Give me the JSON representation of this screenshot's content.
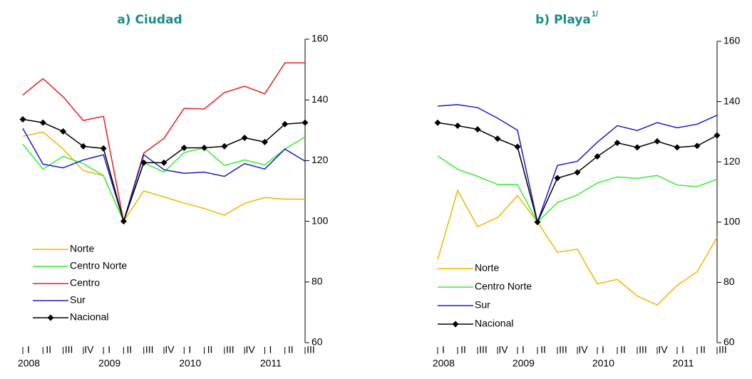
{
  "chart_data": [
    {
      "type": "line",
      "title": "a) Ciudad",
      "categories": [
        "I",
        "II",
        "III",
        "IV",
        "I",
        "II",
        "III",
        "IV",
        "I",
        "II",
        "III",
        "IV",
        "I",
        "II",
        "III"
      ],
      "year_labels": [
        "2008",
        "2009",
        "2010",
        "2011"
      ],
      "ylim": [
        60,
        160
      ],
      "yticks": [
        60,
        80,
        100,
        120,
        140,
        160
      ],
      "grid": false,
      "series": [
        {
          "name": "Norte",
          "color": "#f5b400",
          "values": [
            128,
            129.4,
            123.8,
            116.7,
            115,
            100,
            110,
            108,
            106,
            104.2,
            102,
            105.9,
            107.8,
            107.3,
            107.3
          ]
        },
        {
          "name": "Centro Norte",
          "color": "#33ee33",
          "values": [
            125.4,
            117.2,
            121.4,
            119,
            115,
            100,
            119.3,
            116.2,
            122.6,
            124.2,
            118.4,
            120.2,
            118.6,
            123.8,
            127.8
          ]
        },
        {
          "name": "Centro",
          "color": "#e8201a",
          "values": [
            141.6,
            147,
            141,
            133.2,
            134.6,
            100,
            122.5,
            127.3,
            137.2,
            137,
            142.4,
            144.5,
            142,
            152.2,
            152.2
          ]
        },
        {
          "name": "Sur",
          "color": "#1a1acc",
          "values": [
            130.6,
            118.8,
            117.6,
            120.2,
            121.9,
            100,
            121.9,
            117,
            115.8,
            116.2,
            114.8,
            119,
            117.2,
            123.8,
            119.8
          ]
        },
        {
          "name": "Nacional",
          "color": "#000000",
          "marker": "diamond",
          "values": [
            133.6,
            132.5,
            129.6,
            124.7,
            124,
            100,
            119.3,
            119.3,
            124.2,
            124.2,
            124.7,
            127.5,
            126.1,
            132,
            132.5
          ]
        }
      ]
    },
    {
      "type": "line",
      "title": "b) Playa",
      "title_superscript": "1/",
      "categories": [
        "I",
        "II",
        "III",
        "IV",
        "I",
        "II",
        "III",
        "IV",
        "I",
        "II",
        "III",
        "IV",
        "I",
        "II",
        "III"
      ],
      "year_labels": [
        "2008",
        "2009",
        "2010",
        "2011"
      ],
      "ylim": [
        60,
        160
      ],
      "yticks": [
        60,
        80,
        100,
        120,
        140,
        160
      ],
      "grid": false,
      "series": [
        {
          "name": "Norte",
          "color": "#f5b400",
          "values": [
            87.5,
            110.5,
            98.5,
            101.5,
            108.8,
            100,
            90,
            91,
            79.5,
            81,
            75.5,
            72.5,
            79,
            83.5,
            95
          ]
        },
        {
          "name": "Centro Norte",
          "color": "#33ee33",
          "values": [
            122,
            117.5,
            115.2,
            112.5,
            112.5,
            100,
            106.5,
            109,
            113,
            115,
            114.5,
            115.5,
            112.3,
            111.8,
            114.2
          ]
        },
        {
          "name": "Sur",
          "color": "#1a1acc",
          "values": [
            138.5,
            139,
            138,
            134.5,
            130.5,
            100,
            118.8,
            120.2,
            126.5,
            132,
            130.4,
            133,
            131.3,
            132.5,
            135.5
          ]
        },
        {
          "name": "Nacional",
          "color": "#000000",
          "marker": "diamond",
          "values": [
            133,
            132,
            130.8,
            127.7,
            125,
            100,
            114.6,
            116.5,
            121.8,
            126.3,
            124.8,
            126.8,
            124.8,
            125.3,
            128.8
          ]
        }
      ]
    }
  ]
}
